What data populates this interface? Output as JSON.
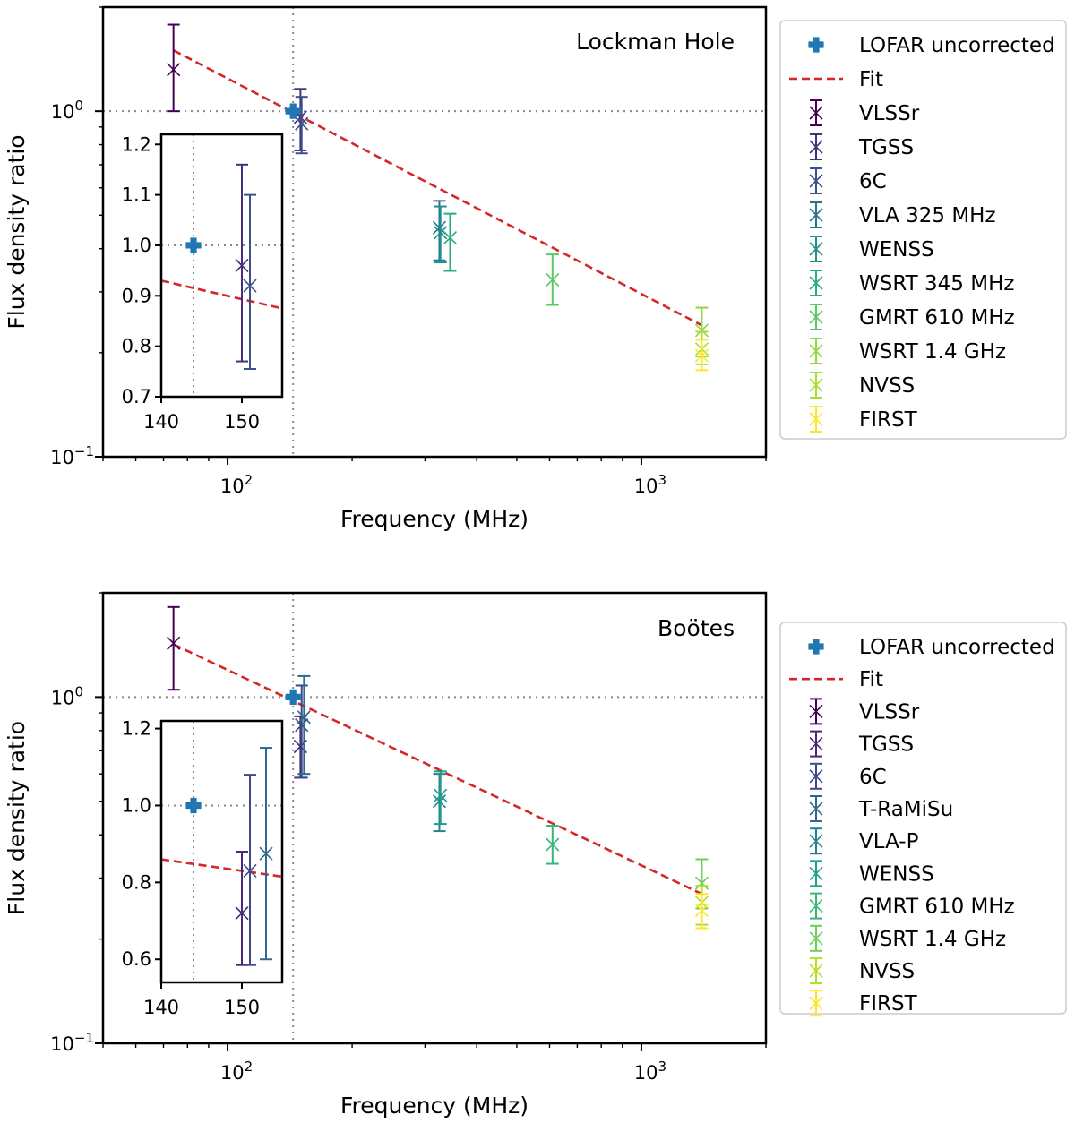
{
  "chart_data": [
    {
      "type": "scatter",
      "title": "Lockman Hole",
      "xlabel": "Frequency (MHz)",
      "ylabel": "Flux density ratio",
      "xscale": "log",
      "yscale": "log",
      "xlim": [
        50,
        2000
      ],
      "ylim": [
        0.1,
        2.0
      ],
      "x_tick_labels": [
        {
          "base": "10",
          "exp": "2"
        },
        {
          "base": "10",
          "exp": "3"
        }
      ],
      "y_tick_labels": [
        {
          "base": "10",
          "exp": "0"
        },
        {
          "base": "10",
          "exp": "−1"
        }
      ],
      "reference_lines": {
        "y": 1.0,
        "x": 144
      },
      "fit": {
        "label": "Fit",
        "color": "#d62728",
        "x_range": [
          74,
          1400
        ],
        "y_at_start": 1.5,
        "y_at_end": 0.24
      },
      "lofar": {
        "label": "LOFAR uncorrected",
        "x": 144,
        "y": 1.0,
        "color": "#1f77b4"
      },
      "series": [
        {
          "name": "VLSSr",
          "x": 74,
          "y": 1.32,
          "err_low": 1.0,
          "err_high": 1.78,
          "color": "#440154"
        },
        {
          "name": "TGSS",
          "x": 150,
          "y": 0.96,
          "err_low": 0.77,
          "err_high": 1.16,
          "color": "#472f7d"
        },
        {
          "name": "6C",
          "x": 151,
          "y": 0.92,
          "err_low": 0.755,
          "err_high": 1.1,
          "color": "#3b518b"
        },
        {
          "name": "VLA 325 MHz",
          "x": 325,
          "y": 0.46,
          "err_low": 0.37,
          "err_high": 0.55,
          "color": "#2c718e"
        },
        {
          "name": "WENSS",
          "x": 327,
          "y": 0.445,
          "err_low": 0.365,
          "err_high": 0.53,
          "color": "#21908d"
        },
        {
          "name": "WSRT 345 MHz",
          "x": 345,
          "y": 0.43,
          "err_low": 0.345,
          "err_high": 0.505,
          "color": "#27ad81"
        },
        {
          "name": "GMRT 610 MHz",
          "x": 610,
          "y": 0.325,
          "err_low": 0.275,
          "err_high": 0.385,
          "color": "#5cc863"
        },
        {
          "name": "WSRT 1.4 GHz",
          "x": 1400,
          "y": 0.232,
          "err_low": 0.195,
          "err_high": 0.27,
          "color": "#8fd744"
        },
        {
          "name": "NVSS",
          "x": 1400,
          "y": 0.205,
          "err_low": 0.185,
          "err_high": 0.23,
          "color": "#aadc32"
        },
        {
          "name": "FIRST",
          "x": 1400,
          "y": 0.196,
          "err_low": 0.178,
          "err_high": 0.218,
          "color": "#fde725"
        }
      ],
      "inset": {
        "xlim": [
          140,
          155
        ],
        "ylim": [
          0.7,
          1.22
        ],
        "x_ticks": [
          140,
          150
        ],
        "y_ticks": [
          "0.7",
          "0.8",
          "0.9",
          "1.0",
          "1.1",
          "1.2"
        ],
        "fit_y_at_start": 0.93,
        "fit_y_at_end": 0.875
      }
    },
    {
      "type": "scatter",
      "title": "Boötes",
      "xlabel": "Frequency (MHz)",
      "ylabel": "Flux density ratio",
      "xscale": "log",
      "yscale": "log",
      "xlim": [
        50,
        2000
      ],
      "ylim": [
        0.1,
        2.0
      ],
      "x_tick_labels": [
        {
          "base": "10",
          "exp": "2"
        },
        {
          "base": "10",
          "exp": "3"
        }
      ],
      "y_tick_labels": [
        {
          "base": "10",
          "exp": "0"
        },
        {
          "base": "10",
          "exp": "−1"
        }
      ],
      "reference_lines": {
        "y": 1.0,
        "x": 144
      },
      "fit": {
        "label": "Fit",
        "color": "#d62728",
        "x_range": [
          74,
          1400
        ],
        "y_at_start": 1.42,
        "y_at_end": 0.27
      },
      "lofar": {
        "label": "LOFAR uncorrected",
        "x": 144,
        "y": 1.0,
        "color": "#1f77b4"
      },
      "series": [
        {
          "name": "VLSSr",
          "x": 74,
          "y": 1.43,
          "err_low": 1.05,
          "err_high": 1.82,
          "color": "#440154"
        },
        {
          "name": "TGSS",
          "x": 150,
          "y": 0.72,
          "err_low": 0.585,
          "err_high": 0.88,
          "color": "#482878"
        },
        {
          "name": "6C",
          "x": 151,
          "y": 0.83,
          "err_low": 0.585,
          "err_high": 1.08,
          "color": "#3e4989"
        },
        {
          "name": "T-RaMiSu",
          "x": 153,
          "y": 0.875,
          "err_low": 0.6,
          "err_high": 1.15,
          "color": "#31688e"
        },
        {
          "name": "VLA-P",
          "x": 325,
          "y": 0.5,
          "err_low": 0.41,
          "err_high": 0.6,
          "color": "#26828e"
        },
        {
          "name": "WENSS",
          "x": 327,
          "y": 0.52,
          "err_low": 0.43,
          "err_high": 0.61,
          "color": "#1f9e89"
        },
        {
          "name": "GMRT 610 MHz",
          "x": 610,
          "y": 0.375,
          "err_low": 0.33,
          "err_high": 0.425,
          "color": "#35b779"
        },
        {
          "name": "WSRT 1.4 GHz",
          "x": 1400,
          "y": 0.29,
          "err_low": 0.245,
          "err_high": 0.34,
          "color": "#6ece58"
        },
        {
          "name": "NVSS",
          "x": 1400,
          "y": 0.255,
          "err_low": 0.22,
          "err_high": 0.285,
          "color": "#b5de2b"
        },
        {
          "name": "FIRST",
          "x": 1400,
          "y": 0.242,
          "err_low": 0.215,
          "err_high": 0.27,
          "color": "#fde725"
        }
      ],
      "inset": {
        "xlim": [
          140,
          155
        ],
        "ylim": [
          0.54,
          1.22
        ],
        "x_ticks": [
          140,
          150
        ],
        "y_ticks": [
          "0.6",
          "0.8",
          "1.0",
          "1.2"
        ],
        "fit_y_at_start": 0.86,
        "fit_y_at_end": 0.815
      }
    }
  ]
}
